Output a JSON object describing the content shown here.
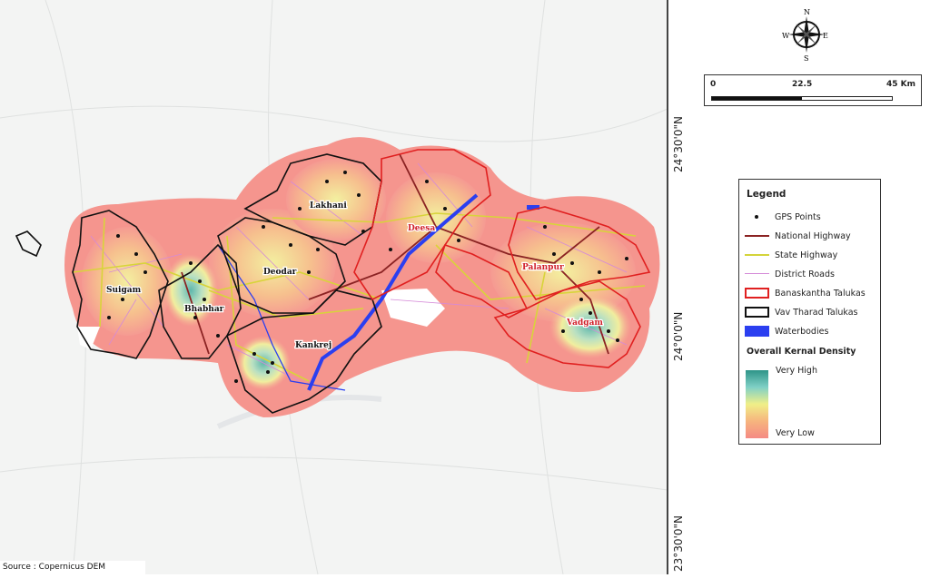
{
  "map": {
    "taluka_labels": [
      {
        "name": "Suigam",
        "group": "vav_tharad"
      },
      {
        "name": "Bhabhar",
        "group": "vav_tharad"
      },
      {
        "name": "Deodar",
        "group": "vav_tharad"
      },
      {
        "name": "Lakhani",
        "group": "vav_tharad"
      },
      {
        "name": "Kankrej",
        "group": "vav_tharad"
      },
      {
        "name": "Deesa",
        "group": "banaskantha"
      },
      {
        "name": "Palanpur",
        "group": "banaskantha"
      },
      {
        "name": "Vadgam",
        "group": "banaskantha"
      }
    ],
    "latitude_labels": [
      "24°30'0\"N",
      "24°0'0\"N",
      "23°30'0\"N"
    ],
    "source": "Source : Copernicus DEM"
  },
  "compass": {
    "n": "N",
    "e": "E",
    "s": "S",
    "w": "W",
    "icon": "compass-rose-icon"
  },
  "scale_bar": {
    "labels": [
      "0",
      "22.5",
      "45 Km"
    ]
  },
  "legend": {
    "title": "Legend",
    "items": [
      {
        "label": "GPS Points",
        "color": "#111111"
      },
      {
        "label": "National Highway",
        "color": "#8b2323"
      },
      {
        "label": "State Highway",
        "color": "#d4d43a"
      },
      {
        "label": "District Roads",
        "color": "#d58ad8"
      },
      {
        "label": "Banaskantha Talukas",
        "color": "#e02020"
      },
      {
        "label": "Vav Tharad Talukas",
        "color": "#111111"
      },
      {
        "label": "Waterbodies",
        "color": "#2b3ff0"
      }
    ],
    "density_title": "Overall Kernal Density",
    "density_high": "Very High",
    "density_low": "Very Low",
    "density_colors": [
      "#2e9488",
      "#f0ef88",
      "#f58a84"
    ]
  }
}
